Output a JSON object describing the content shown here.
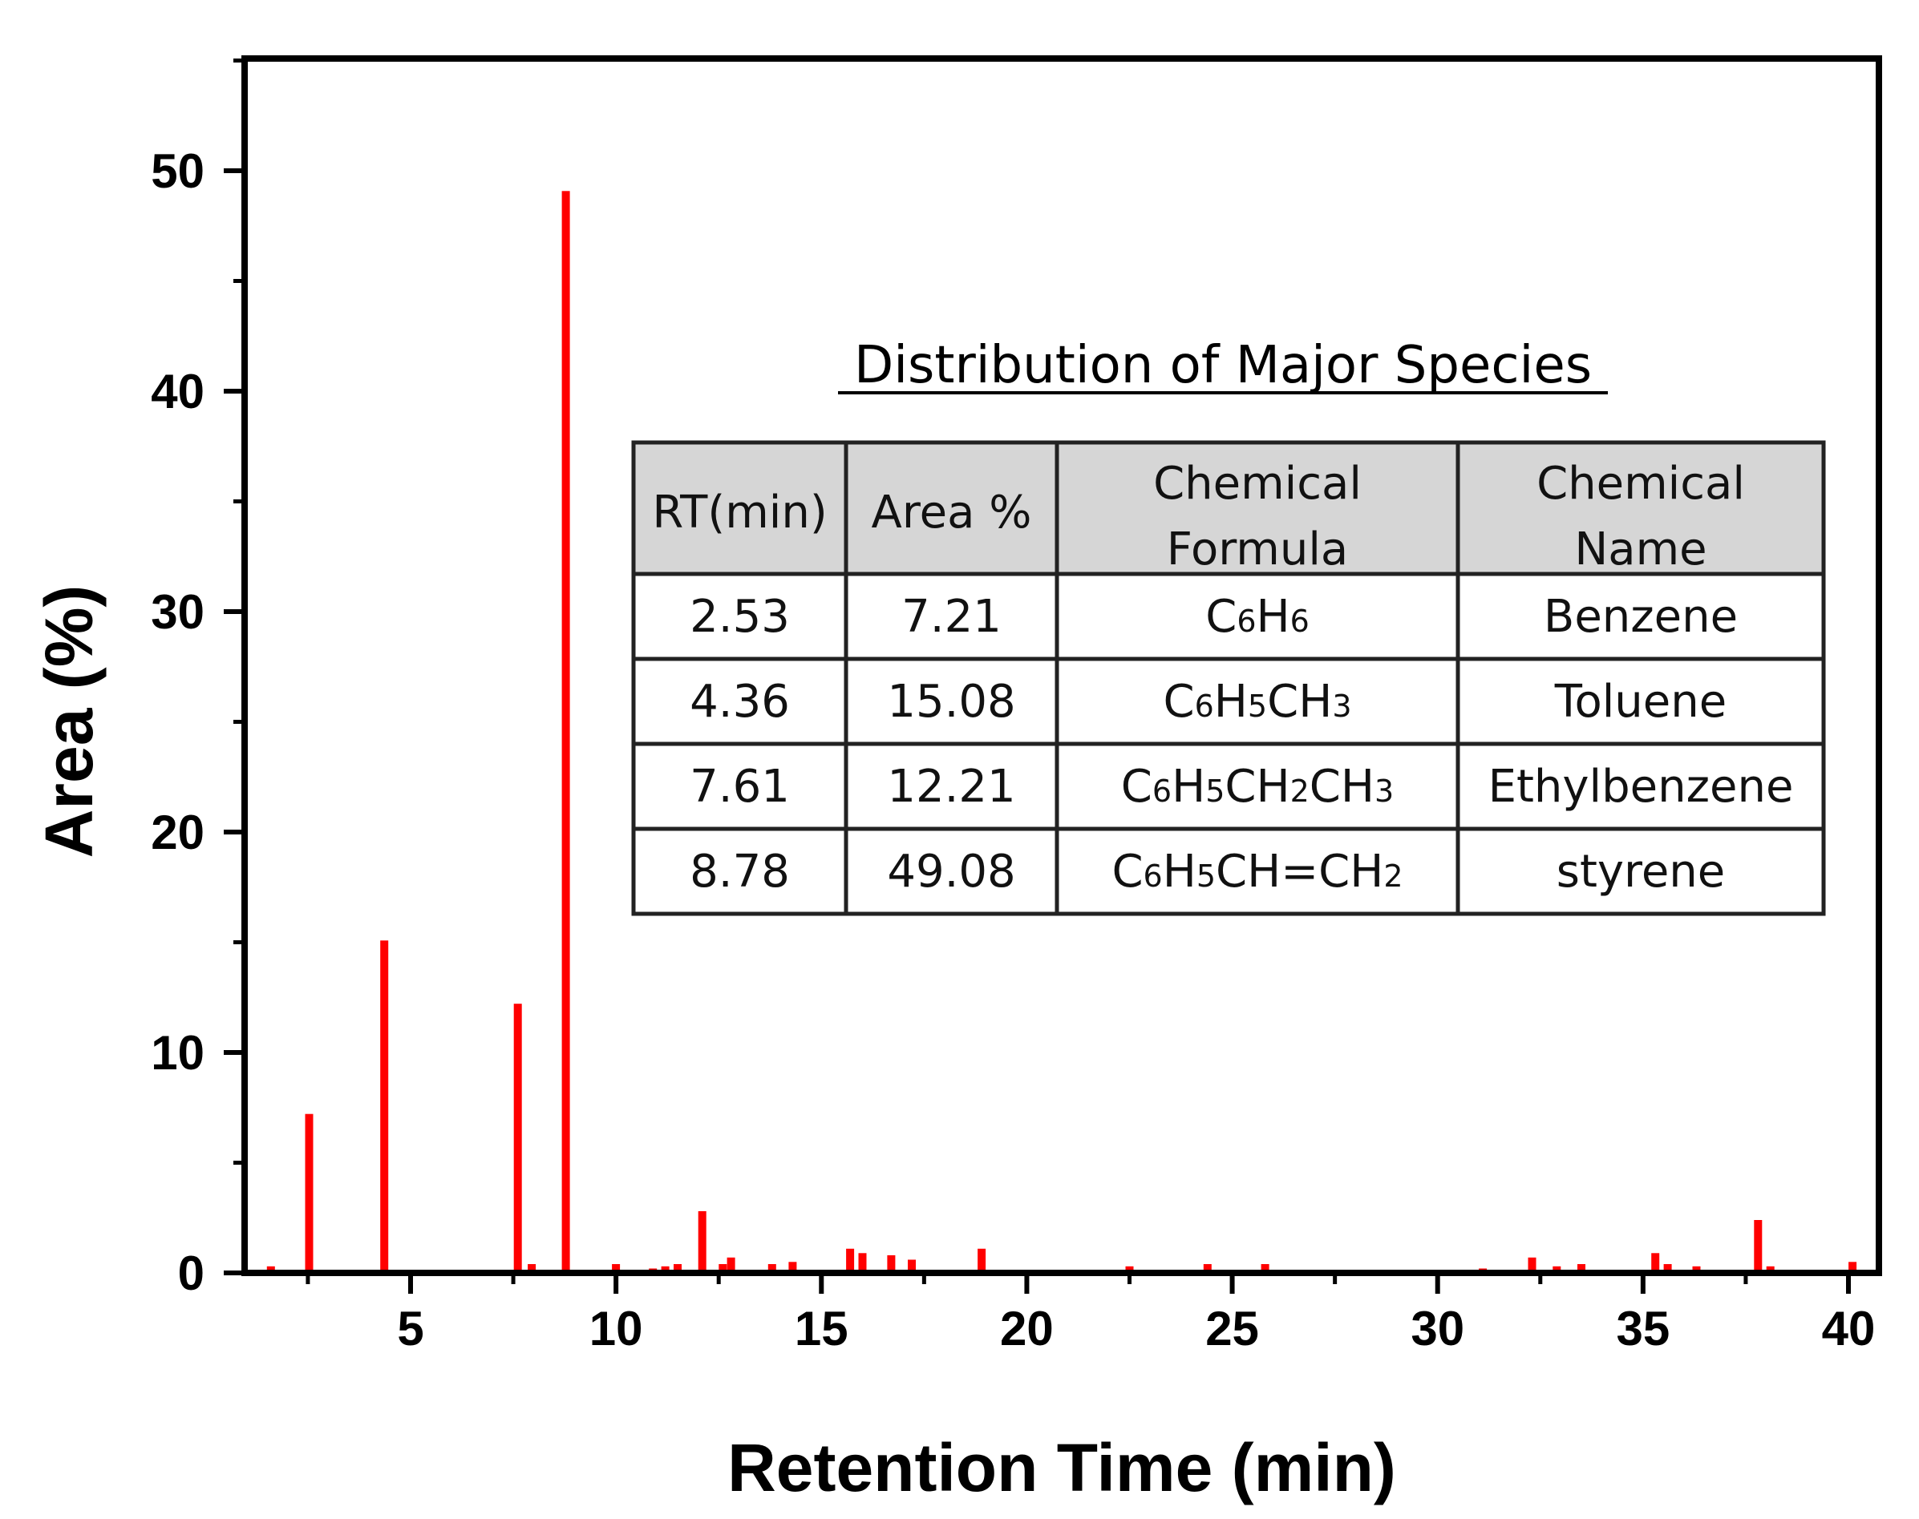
{
  "chart_data": {
    "type": "bar",
    "title": "",
    "xlabel": "Retention Time (min)",
    "ylabel": "Area (%)",
    "xlim": [
      1,
      40.6
    ],
    "ylim": [
      0,
      55
    ],
    "xticks": [
      5,
      10,
      15,
      20,
      25,
      30,
      35,
      40
    ],
    "yticks": [
      0,
      10,
      20,
      30,
      40,
      50
    ],
    "bar_color": "#ff0000",
    "peaks": [
      {
        "x": 1.6,
        "y": 0.3
      },
      {
        "x": 2.53,
        "y": 7.21
      },
      {
        "x": 4.36,
        "y": 15.08
      },
      {
        "x": 7.61,
        "y": 12.21
      },
      {
        "x": 7.95,
        "y": 0.4
      },
      {
        "x": 8.78,
        "y": 49.08
      },
      {
        "x": 10.0,
        "y": 0.4
      },
      {
        "x": 10.9,
        "y": 0.2
      },
      {
        "x": 11.2,
        "y": 0.3
      },
      {
        "x": 11.5,
        "y": 0.4
      },
      {
        "x": 12.1,
        "y": 2.8
      },
      {
        "x": 12.6,
        "y": 0.4
      },
      {
        "x": 12.8,
        "y": 0.7
      },
      {
        "x": 13.8,
        "y": 0.4
      },
      {
        "x": 14.3,
        "y": 0.5
      },
      {
        "x": 15.7,
        "y": 1.1
      },
      {
        "x": 16.0,
        "y": 0.9
      },
      {
        "x": 16.7,
        "y": 0.8
      },
      {
        "x": 17.2,
        "y": 0.6
      },
      {
        "x": 18.9,
        "y": 1.1
      },
      {
        "x": 22.5,
        "y": 0.3
      },
      {
        "x": 24.4,
        "y": 0.4
      },
      {
        "x": 25.8,
        "y": 0.4
      },
      {
        "x": 31.1,
        "y": 0.2
      },
      {
        "x": 32.3,
        "y": 0.7
      },
      {
        "x": 32.9,
        "y": 0.3
      },
      {
        "x": 33.5,
        "y": 0.4
      },
      {
        "x": 35.3,
        "y": 0.9
      },
      {
        "x": 35.6,
        "y": 0.4
      },
      {
        "x": 36.3,
        "y": 0.3
      },
      {
        "x": 37.8,
        "y": 2.4
      },
      {
        "x": 38.1,
        "y": 0.3
      },
      {
        "x": 40.1,
        "y": 0.5
      }
    ],
    "inset_table": {
      "title": "Distribution of Major Species",
      "header": [
        {
          "lines": [
            "RT(min)"
          ]
        },
        {
          "lines": [
            "Area %"
          ]
        },
        {
          "lines": [
            "Chemical",
            "Formula"
          ]
        },
        {
          "lines": [
            "Chemical",
            "Name"
          ]
        }
      ],
      "rows": [
        {
          "rt": "2.53",
          "area": "7.21",
          "formula": [
            [
              "C",
              ""
            ],
            [
              "6",
              "sub"
            ],
            [
              "H",
              ""
            ],
            [
              "6",
              "sub"
            ]
          ],
          "name": "Benzene"
        },
        {
          "rt": "4.36",
          "area": "15.08",
          "formula": [
            [
              "C",
              ""
            ],
            [
              "6",
              "sub"
            ],
            [
              "H",
              ""
            ],
            [
              "5",
              "sub"
            ],
            [
              "CH",
              ""
            ],
            [
              "3",
              "sub"
            ]
          ],
          "name": "Toluene"
        },
        {
          "rt": "7.61",
          "area": "12.21",
          "formula": [
            [
              "C",
              ""
            ],
            [
              "6",
              "sub"
            ],
            [
              "H",
              ""
            ],
            [
              "5",
              "sub"
            ],
            [
              "CH",
              ""
            ],
            [
              "2",
              "sub"
            ],
            [
              "CH",
              ""
            ],
            [
              "3",
              "sub"
            ]
          ],
          "name": "Ethylbenzene"
        },
        {
          "rt": "8.78",
          "area": "49.08",
          "formula": [
            [
              "C",
              ""
            ],
            [
              "6",
              "sub"
            ],
            [
              "H",
              ""
            ],
            [
              "5",
              "sub"
            ],
            [
              "CH=CH",
              ""
            ],
            [
              "2",
              "sub"
            ]
          ],
          "name": "styrene"
        }
      ]
    }
  }
}
